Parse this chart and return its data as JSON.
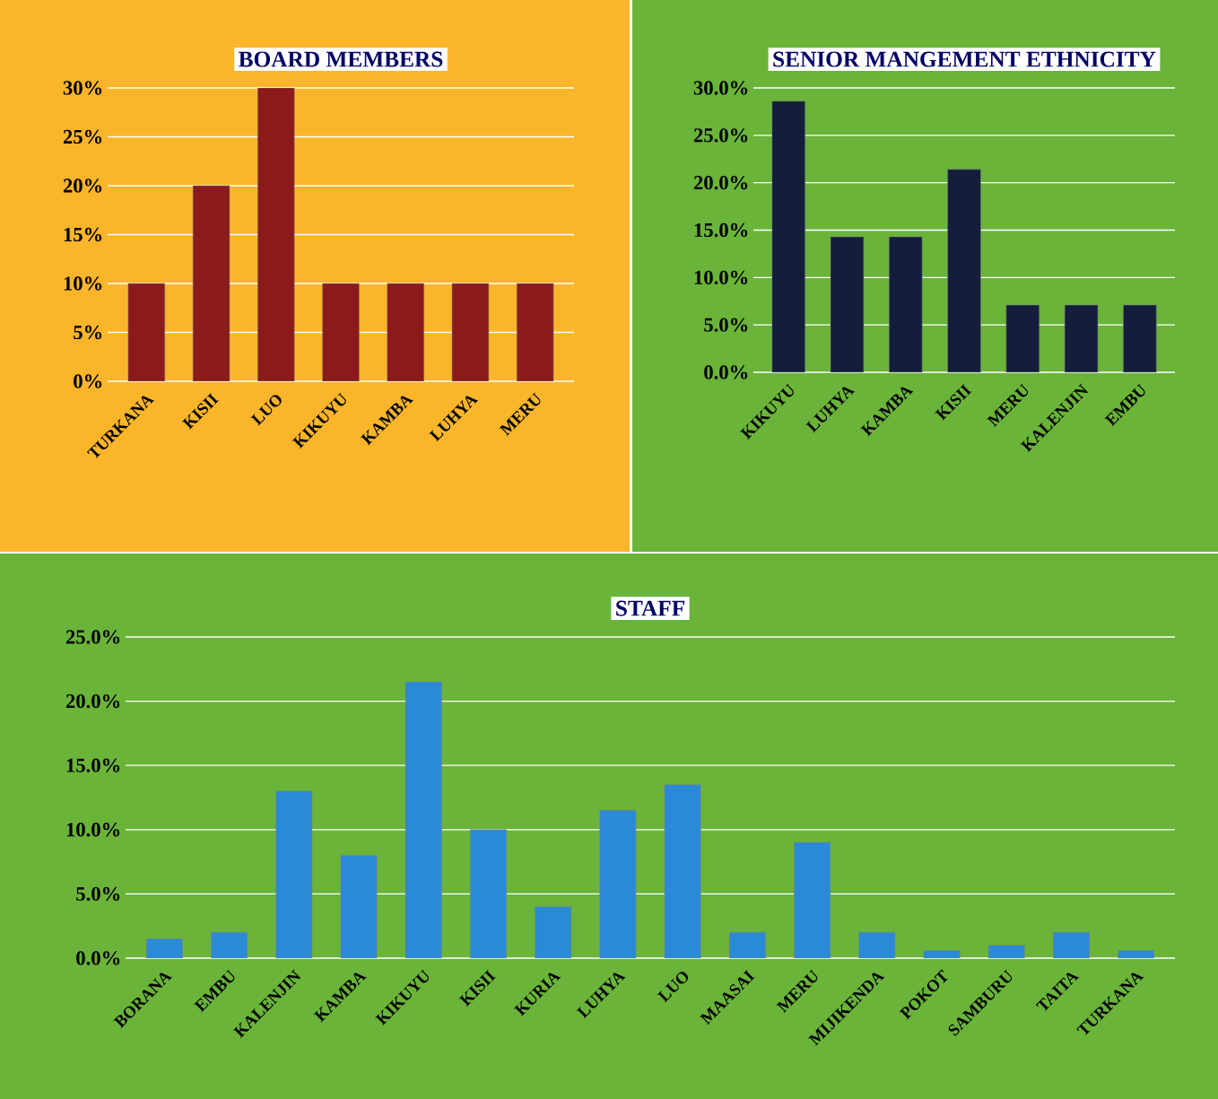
{
  "chart_data": [
    {
      "type": "bar",
      "title": "BOARD MEMBERS",
      "categories": [
        "TURKANA",
        "KISII",
        "LUO",
        "KIKUYU",
        "KAMBA",
        "LUHYA",
        "MERU"
      ],
      "values": [
        10,
        20,
        30,
        10,
        10,
        10,
        10
      ],
      "color": "#8b1a1a",
      "ylim": [
        0,
        30
      ],
      "yticks": [
        {
          "value": 0,
          "label": "0%"
        },
        {
          "value": 5,
          "label": "5%"
        },
        {
          "value": 10,
          "label": "10%"
        },
        {
          "value": 15,
          "label": "15%"
        },
        {
          "value": 20,
          "label": "20%"
        },
        {
          "value": 25,
          "label": "25%"
        },
        {
          "value": 30,
          "label": "30%"
        }
      ],
      "grid": "y"
    },
    {
      "type": "bar",
      "title": "SENIOR MANGEMENT ETHNICITY",
      "categories": [
        "KIKUYU",
        "LUHYA",
        "KAMBA",
        "KISII",
        "MERU",
        "KALENJIN",
        "EMBU"
      ],
      "values": [
        28.6,
        14.3,
        14.3,
        21.4,
        7.1,
        7.1,
        7.1
      ],
      "color": "#141e3c",
      "ylim": [
        0,
        30
      ],
      "yticks": [
        {
          "value": 0,
          "label": "0.0%"
        },
        {
          "value": 5,
          "label": "5.0%"
        },
        {
          "value": 10,
          "label": "10.0%"
        },
        {
          "value": 15,
          "label": "15.0%"
        },
        {
          "value": 20,
          "label": "20.0%"
        },
        {
          "value": 25,
          "label": "25.0%"
        },
        {
          "value": 30,
          "label": "30.0%"
        }
      ],
      "grid": "y"
    },
    {
      "type": "bar",
      "title": "STAFF",
      "categories": [
        "BORANA",
        "EMBU",
        "KALENJIN",
        "KAMBA",
        "KIKUYU",
        "KISII",
        "KURIA",
        "LUHYA",
        "LUO",
        "MAASAI",
        "MERU",
        "MIJIKENDA",
        "POKOT",
        "SAMBURU",
        "TAITA",
        "TURKANA"
      ],
      "values": [
        1.5,
        2.0,
        13,
        8,
        21.5,
        10,
        4,
        11.5,
        13.5,
        2,
        9,
        2,
        0.6,
        1,
        2,
        0.6
      ],
      "color": "#2a8ad8",
      "ylim": [
        0,
        25
      ],
      "yticks": [
        {
          "value": 0,
          "label": "0.0%"
        },
        {
          "value": 5,
          "label": "5.0%"
        },
        {
          "value": 10,
          "label": "10.0%"
        },
        {
          "value": 15,
          "label": "15.0%"
        },
        {
          "value": 20,
          "label": "20.0%"
        },
        {
          "value": 25,
          "label": "25.0%"
        }
      ],
      "grid": "y"
    }
  ]
}
